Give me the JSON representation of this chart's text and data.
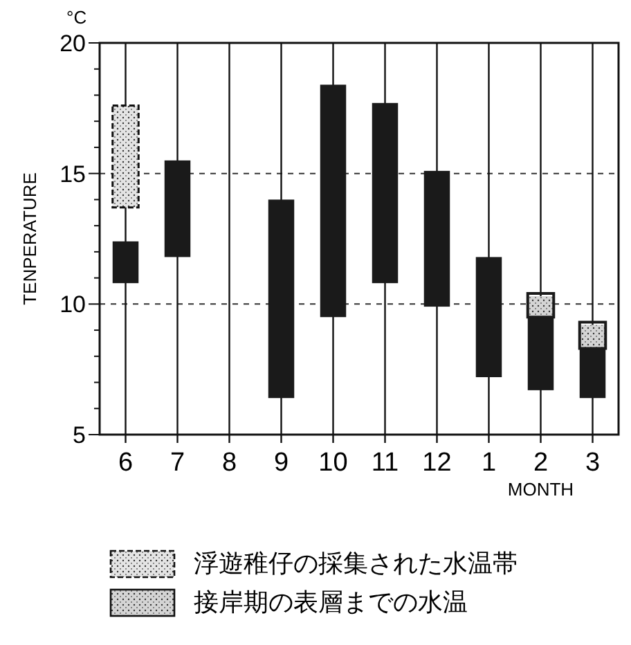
{
  "chart_data": {
    "type": "bar",
    "ylabel": "TENPERATURE",
    "xlabel": "MONTH",
    "annotations": [
      "°C"
    ],
    "categories": [
      "6",
      "7",
      "8",
      "9",
      "10",
      "11",
      "12",
      "1",
      "2",
      "3"
    ],
    "ylim": [
      5,
      20
    ],
    "yticks": [
      5,
      {
        "value": 6,
        "label": null
      },
      {
        "value": 7,
        "label": null
      },
      {
        "value": 8,
        "label": null
      },
      {
        "value": 9,
        "label": null
      },
      10,
      {
        "value": 11,
        "label": null
      },
      {
        "value": 12,
        "label": null
      },
      {
        "value": 13,
        "label": null
      },
      {
        "value": 14,
        "label": null
      },
      15,
      {
        "value": 16,
        "label": null
      },
      {
        "value": 17,
        "label": null
      },
      {
        "value": 18,
        "label": null
      },
      {
        "value": 19,
        "label": null
      },
      20
    ],
    "grid": true,
    "legend": "bottom",
    "series": [
      {
        "color": "#1a1a1a",
        "base": [
          10.8,
          11.8,
          null,
          6.4,
          9.5,
          10.8,
          9.9,
          7.2,
          6.7,
          6.4
        ],
        "values": [
          1.6,
          3.7,
          null,
          7.6,
          8.9,
          6.9,
          5.2,
          4.6,
          2.8,
          1.9
        ]
      },
      {
        "name": "浮遊稚仔の採集された水温帯",
        "color": "#e4e4e4",
        "line_style": "dashed",
        "base": [
          13.7,
          null,
          null,
          null,
          null,
          null,
          null,
          null,
          null,
          null
        ],
        "values": [
          3.9,
          null,
          null,
          null,
          null,
          null,
          null,
          null,
          null,
          null
        ]
      },
      {
        "name": "接岸期の表層までの水温",
        "color": "#d4d4d4",
        "line_style": "solid",
        "base": [
          null,
          null,
          null,
          null,
          null,
          null,
          null,
          null,
          9.5,
          8.3
        ],
        "values": [
          null,
          null,
          null,
          null,
          null,
          null,
          null,
          null,
          0.8,
          0.9
        ]
      }
    ]
  }
}
